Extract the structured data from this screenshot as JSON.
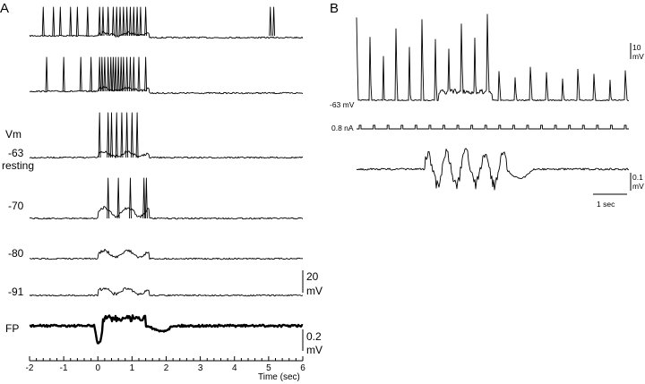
{
  "chart_data": [
    {
      "type": "line",
      "panel_label": "A",
      "xlabel": "Time (sec)",
      "xlim": [
        -2,
        6
      ],
      "x_ticks": [
        "-2",
        "-1",
        "0",
        "1",
        "2",
        "3",
        "4",
        "5",
        "6"
      ],
      "side_labels": {
        "vm": "Vm",
        "resting": "resting",
        "fp": "FP"
      },
      "series": [
        {
          "label": "",
          "holding_mV": null
        },
        {
          "label": "",
          "holding_mV": null
        },
        {
          "label": "-63",
          "holding_mV": -63
        },
        {
          "label": "-70",
          "holding_mV": -70
        },
        {
          "label": "-80",
          "holding_mV": -80
        },
        {
          "label": "-91",
          "holding_mV": -91
        }
      ],
      "scale_bars": [
        {
          "value": "20",
          "unit": "mV"
        },
        {
          "value": "0.2",
          "unit": "mV"
        }
      ]
    },
    {
      "type": "line",
      "panel_label": "B",
      "vm_label": "-63 mV",
      "current_label": "0.8 nA",
      "current_pulses": 20,
      "scale_bars": [
        {
          "value": "10",
          "unit": "mV"
        },
        {
          "value": "0.1",
          "unit": "mV"
        },
        {
          "value": "1 sec",
          "unit": ""
        }
      ]
    }
  ]
}
